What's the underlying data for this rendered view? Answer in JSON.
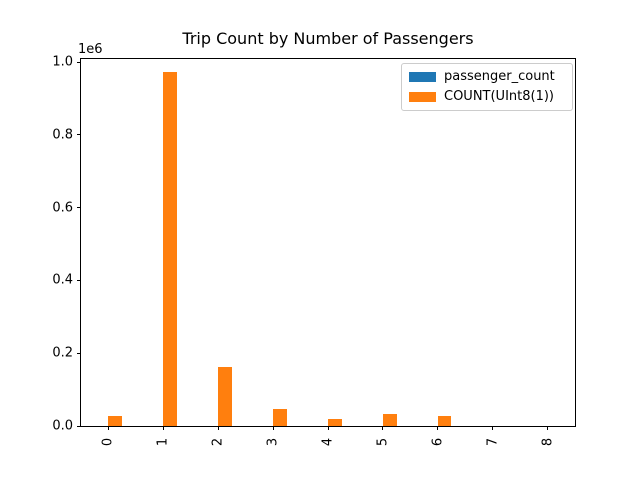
{
  "chart_data": {
    "type": "bar",
    "title": "Trip Count by Number of Passengers",
    "categories": [
      "0",
      "1",
      "2",
      "3",
      "4",
      "5",
      "6",
      "7",
      "8"
    ],
    "series": [
      {
        "name": "passenger_count",
        "color": "#1f77b4",
        "values": [
          0,
          0,
          0,
          0,
          0,
          0,
          0,
          0,
          0
        ]
      },
      {
        "name": "COUNT(UInt8(1))",
        "color": "#ff7f0e",
        "values": [
          27000,
          972000,
          161000,
          47000,
          19000,
          33000,
          27000,
          0,
          0
        ]
      }
    ],
    "xlabel": "",
    "ylabel": "",
    "y_axis": {
      "offset_label": "1e6",
      "ticks": [
        "0.0",
        "0.2",
        "0.4",
        "0.6",
        "0.8",
        "1.0"
      ],
      "min": 0,
      "max": 1000000
    },
    "x_tick_rotation": 90,
    "grid": false,
    "legend_position": "upper right",
    "background_color": "#ffffff",
    "axes_edge_color": "#000000"
  }
}
